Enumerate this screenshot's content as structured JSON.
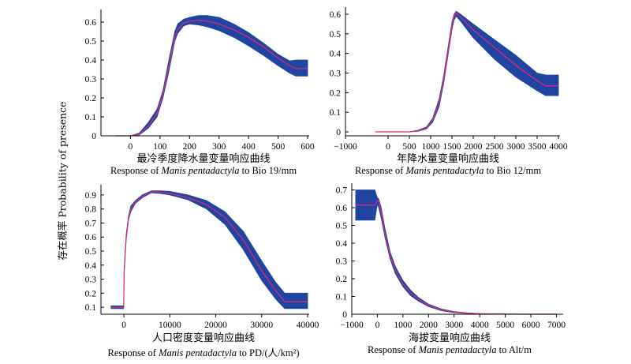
{
  "figure": {
    "ylabel": "存在概率 Probability of presence"
  },
  "colors": {
    "band": "#1f44a1",
    "curve": "#e4287a"
  },
  "chart_data": [
    {
      "type": "area",
      "title_cn": "最冷季度降水量变量响应曲线",
      "caption": {
        "pre": "Response of ",
        "species": "Manis pentadactyla",
        "post": " to Bio 19/mm"
      },
      "xlim": [
        -100,
        600
      ],
      "ylim": [
        0,
        0.65
      ],
      "xticks": [
        "0",
        "100",
        "200",
        "300",
        "400",
        "500",
        "600"
      ],
      "yticks": [
        "0",
        "0.1",
        "0.2",
        "0.3",
        "0.4",
        "0.5",
        "0.6"
      ],
      "x": [
        -50,
        0,
        30,
        60,
        90,
        110,
        130,
        150,
        160,
        180,
        200,
        230,
        260,
        300,
        350,
        400,
        450,
        500,
        540,
        560,
        600
      ],
      "mean": [
        0,
        0,
        0.01,
        0.05,
        0.12,
        0.22,
        0.37,
        0.52,
        0.56,
        0.595,
        0.605,
        0.61,
        0.605,
        0.59,
        0.56,
        0.52,
        0.47,
        0.41,
        0.37,
        0.355,
        0.355
      ],
      "lower": [
        0,
        0,
        0.005,
        0.04,
        0.1,
        0.2,
        0.34,
        0.5,
        0.54,
        0.58,
        0.59,
        0.585,
        0.575,
        0.555,
        0.52,
        0.475,
        0.425,
        0.37,
        0.33,
        0.315,
        0.315
      ],
      "upper": [
        0,
        0,
        0.015,
        0.07,
        0.14,
        0.24,
        0.4,
        0.55,
        0.59,
        0.615,
        0.625,
        0.635,
        0.635,
        0.625,
        0.59,
        0.545,
        0.49,
        0.43,
        0.395,
        0.4,
        0.4
      ]
    },
    {
      "type": "area",
      "title_cn": "年降水量变量响应曲线",
      "caption": {
        "pre": "Response of ",
        "species": "Manis pentadactyla",
        "post": " to Bio 12/mm"
      },
      "xlim": [
        -1000,
        4000
      ],
      "ylim": [
        -0.02,
        0.62
      ],
      "xticks": [
        "−1000",
        "0",
        "500",
        "1000",
        "1500",
        "2000",
        "2500",
        "3000",
        "3500",
        "4000"
      ],
      "yticks": [
        "0",
        "0.1",
        "0.2",
        "0.3",
        "0.4",
        "0.5",
        "0.6"
      ],
      "x": [
        -300,
        500,
        700,
        900,
        1050,
        1200,
        1300,
        1400,
        1500,
        1550,
        1600,
        1700,
        2000,
        2500,
        3000,
        3500,
        3700,
        4000
      ],
      "mean": [
        0,
        0,
        0.005,
        0.02,
        0.06,
        0.15,
        0.26,
        0.4,
        0.54,
        0.59,
        0.605,
        0.585,
        0.52,
        0.43,
        0.34,
        0.26,
        0.235,
        0.235
      ],
      "lower": [
        0,
        0,
        0.003,
        0.015,
        0.05,
        0.13,
        0.24,
        0.38,
        0.52,
        0.57,
        0.59,
        0.565,
        0.48,
        0.37,
        0.28,
        0.21,
        0.185,
        0.185
      ],
      "upper": [
        0,
        0,
        0.008,
        0.025,
        0.07,
        0.17,
        0.28,
        0.42,
        0.56,
        0.6,
        0.615,
        0.6,
        0.55,
        0.47,
        0.39,
        0.3,
        0.29,
        0.29
      ]
    },
    {
      "type": "area",
      "title_cn": "人口密度变量响应曲线",
      "caption": {
        "pre": "Response of ",
        "species": "Manis pentadactyla",
        "post": " to PD/(人/km²)"
      },
      "xlim": [
        -5000,
        40000
      ],
      "ylim": [
        0.05,
        0.95
      ],
      "xticks": [
        "0",
        "10000",
        "20000",
        "30000",
        "40000"
      ],
      "yticks": [
        "0.1",
        "0.2",
        "0.3",
        "0.4",
        "0.5",
        "0.6",
        "0.7",
        "0.8",
        "0.9"
      ],
      "x": [
        -2800,
        -300,
        -50,
        50,
        200,
        500,
        1000,
        1500,
        2500,
        4000,
        6000,
        8000,
        10000,
        14000,
        18000,
        22000,
        26000,
        30000,
        33000,
        35000,
        38000,
        40000
      ],
      "mean": [
        0.1,
        0.1,
        0.1,
        0.35,
        0.45,
        0.6,
        0.73,
        0.8,
        0.85,
        0.89,
        0.92,
        0.92,
        0.91,
        0.88,
        0.83,
        0.74,
        0.58,
        0.36,
        0.22,
        0.14,
        0.14,
        0.14
      ],
      "lower": [
        0.09,
        0.09,
        0.09,
        0.33,
        0.43,
        0.58,
        0.72,
        0.78,
        0.84,
        0.88,
        0.915,
        0.91,
        0.9,
        0.865,
        0.8,
        0.69,
        0.51,
        0.29,
        0.16,
        0.09,
        0.09,
        0.09
      ],
      "upper": [
        0.11,
        0.11,
        0.11,
        0.37,
        0.47,
        0.62,
        0.75,
        0.82,
        0.86,
        0.9,
        0.93,
        0.93,
        0.925,
        0.9,
        0.86,
        0.78,
        0.64,
        0.43,
        0.28,
        0.2,
        0.2,
        0.2
      ]
    },
    {
      "type": "area",
      "title_cn": "海拔变量响应曲线",
      "caption": {
        "pre": "Response of ",
        "species": "Manis pentadactyla",
        "post": " to Alt/m"
      },
      "xlim": [
        -1000,
        7200
      ],
      "ylim": [
        0,
        0.72
      ],
      "xticks": [
        "−1000",
        "0",
        "1000",
        "2000",
        "3000",
        "4000",
        "5000",
        "6000",
        "7000"
      ],
      "yticks": [
        "0",
        "0.1",
        "0.2",
        "0.3",
        "0.4",
        "0.5",
        "0.6",
        "0.7"
      ],
      "x": [
        -850,
        -100,
        0,
        50,
        150,
        300,
        500,
        700,
        1000,
        1300,
        1600,
        2000,
        2500,
        3000,
        3500,
        4000,
        5000,
        6000,
        7000
      ],
      "mean": [
        0.615,
        0.615,
        0.64,
        0.64,
        0.57,
        0.45,
        0.33,
        0.25,
        0.17,
        0.12,
        0.085,
        0.05,
        0.025,
        0.012,
        0.006,
        0.003,
        0.001,
        0,
        0
      ],
      "lower": [
        0.53,
        0.53,
        0.62,
        0.6,
        0.54,
        0.43,
        0.31,
        0.23,
        0.155,
        0.105,
        0.075,
        0.043,
        0.02,
        0.009,
        0.004,
        0.002,
        0,
        0,
        0
      ],
      "upper": [
        0.7,
        0.7,
        0.655,
        0.65,
        0.6,
        0.48,
        0.35,
        0.27,
        0.19,
        0.135,
        0.095,
        0.057,
        0.03,
        0.015,
        0.008,
        0.004,
        0.002,
        0.001,
        0.001
      ]
    }
  ]
}
